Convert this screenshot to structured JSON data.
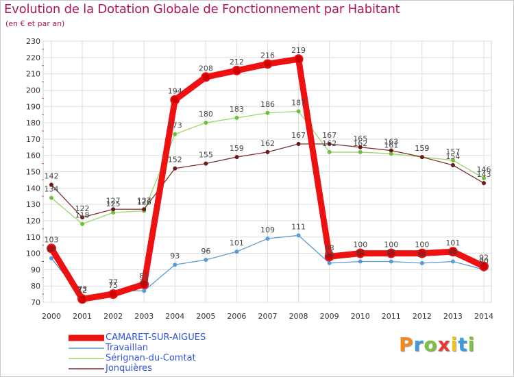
{
  "title": "Evolution de la Dotation Globale de Fonctionnement par Habitant",
  "subtitle": "(en € et par an)",
  "logo": {
    "letters": [
      "P",
      "r",
      "o",
      "x",
      "i",
      "t",
      "i"
    ],
    "colors": [
      "#f08a1c",
      "#3a9be0",
      "#7cc242",
      "#e8392e",
      "#f0c419",
      "#3a9be0",
      "#7cc242"
    ]
  },
  "chart_data": {
    "type": "line",
    "categories": [
      "2000",
      "2001",
      "2002",
      "2003",
      "2004",
      "2005",
      "2006",
      "2007",
      "2008",
      "2009",
      "2010",
      "2011",
      "2012",
      "2013",
      "2014"
    ],
    "ylim": [
      70,
      230
    ],
    "yticks": [
      70,
      80,
      90,
      100,
      110,
      120,
      130,
      140,
      150,
      160,
      170,
      180,
      190,
      200,
      210,
      220,
      230
    ],
    "grid": true,
    "legend_position": "bottom-left",
    "series": [
      {
        "name": "Travaillan",
        "color": "#5b9bd5",
        "marker": "#5b9bd5",
        "values": [
          97,
          73,
          77,
          77,
          93,
          96,
          101,
          109,
          111,
          94,
          95,
          95,
          94,
          95,
          90
        ],
        "labels": [
          "97",
          "73",
          "77",
          "77",
          "93",
          "96",
          "101",
          "109",
          "111",
          "94",
          "95",
          "95",
          "94",
          "95",
          "90"
        ]
      },
      {
        "name": "Sérignan-du-Comtat",
        "color": "#9ad66c",
        "marker": "#6fbf3b",
        "values": [
          134,
          118,
          125,
          126,
          173,
          180,
          183,
          186,
          187,
          162,
          162,
          161,
          159,
          157,
          146
        ],
        "labels": [
          "134",
          "118",
          "125",
          "126",
          "173",
          "180",
          "183",
          "186",
          "187",
          "162",
          "162",
          "161",
          "159",
          "157",
          "146"
        ]
      },
      {
        "name": "Jonquières",
        "color": "#7a3030",
        "marker": "#6b1a1a",
        "values": [
          142,
          122,
          127,
          127,
          152,
          155,
          159,
          162,
          167,
          167,
          165,
          163,
          159,
          154,
          143
        ],
        "labels": [
          "142",
          "122",
          "127",
          "127",
          "152",
          "155",
          "159",
          "162",
          "167",
          "167",
          "165",
          "163",
          "159",
          "154",
          "143"
        ]
      },
      {
        "name": "CAMARET-SUR-AIGUES",
        "color": "#ee1111",
        "marker": "#cc0000",
        "values": [
          103,
          72,
          75,
          81,
          194,
          208,
          212,
          216,
          219,
          98,
          100,
          100,
          100,
          101,
          92
        ],
        "labels": [
          "103",
          "72",
          "75",
          "81",
          "194",
          "208",
          "212",
          "216",
          "219",
          "98",
          "100",
          "100",
          "100",
          "101",
          "92"
        ]
      }
    ]
  },
  "legend": [
    {
      "label": "CAMARET-SUR-AIGUES",
      "color": "#ee1111",
      "width": 9
    },
    {
      "label": "Travaillan",
      "color": "#5b9bd5",
      "width": 1.5
    },
    {
      "label": "Sérignan-du-Comtat",
      "color": "#9ad66c",
      "width": 1.5
    },
    {
      "label": "Jonquières",
      "color": "#7a3030",
      "width": 1.5
    }
  ]
}
